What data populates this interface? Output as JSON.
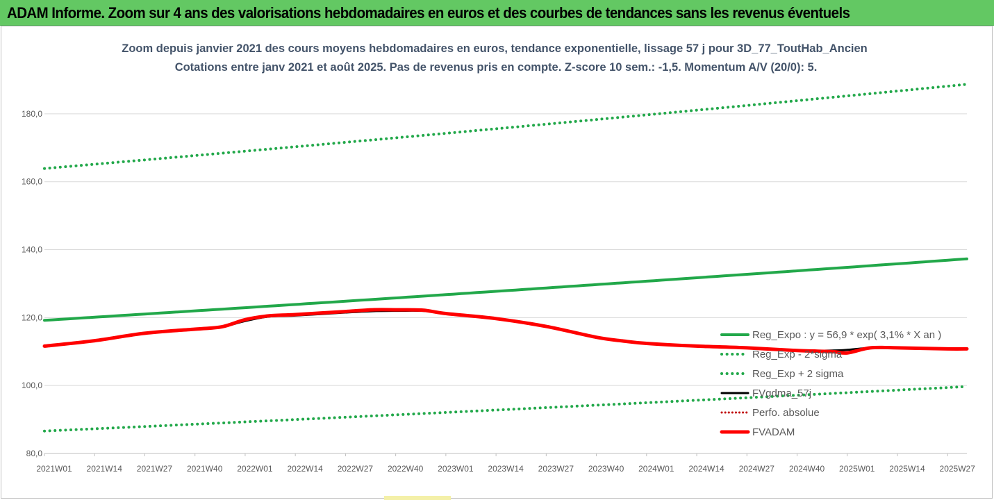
{
  "banner": {
    "title": "ADAM Informe. Zoom sur 4 ans des valorisations hebdomadaires en euros et des courbes de tendances sans les revenus éventuels"
  },
  "colors": {
    "banner_bg": "#63c863",
    "reg_expo": "#22a84a",
    "fvgdma": "#000000",
    "perfo": "#c00000",
    "fvadam": "#ff0000",
    "grid": "#d9d9d9",
    "title": "#44546a"
  },
  "chart_data": {
    "type": "line",
    "title": "Zoom depuis janvier 2021 des cours moyens hebdomadaires en euros, tendance exponentielle, lissage 57 j pour 3D_77_ToutHab_Ancien",
    "subtitle": "Cotations entre janv 2021 et août 2025. Pas de revenus pris en compte. Z-score 10 sem.: -1,5. Momentum A/V (20/0): 5.",
    "xlabel": "",
    "ylabel": "",
    "x_range": [
      "2021W01",
      "2025W32"
    ],
    "x_tick_labels": [
      "2021W01",
      "2021W14",
      "2021W27",
      "2021W40",
      "2022W01",
      "2022W14",
      "2022W27",
      "2022W40",
      "2023W01",
      "2023W14",
      "2023W27",
      "2023W40",
      "2024W01",
      "2024W14",
      "2024W27",
      "2024W40",
      "2025W01",
      "2025W14",
      "2025W27"
    ],
    "y_ticks": [
      "80,0",
      "100,0",
      "120,0",
      "140,0",
      "160,0",
      "180,0"
    ],
    "ylim": [
      80,
      190
    ],
    "grid": "horizontal",
    "legend_position": "right",
    "series": [
      {
        "name": "Reg_Expo : y = 56,9 * exp( 3,1% * X an )",
        "style": "solid-thick",
        "x": [
          "2021W01",
          "2025W32"
        ],
        "y": [
          119.2,
          137.3
        ]
      },
      {
        "name": "Reg_Exp - 2*sigma",
        "style": "dotted",
        "x": [
          "2021W01",
          "2025W32"
        ],
        "y": [
          86.6,
          99.7
        ]
      },
      {
        "name": "Reg_Exp + 2 sigma",
        "style": "dotted",
        "x": [
          "2021W01",
          "2025W32"
        ],
        "y": [
          163.9,
          188.7
        ]
      },
      {
        "name": "FVgdma_57j",
        "style": "solid",
        "x": [
          "2021W01",
          "2021W14",
          "2021W27",
          "2021W40",
          "2021W47",
          "2022W01",
          "2022W07",
          "2022W14",
          "2022W27",
          "2022W34",
          "2022W40",
          "2022W47",
          "2023W01",
          "2023W14",
          "2023W27",
          "2023W40",
          "2023W47",
          "2024W01",
          "2024W14",
          "2024W27",
          "2024W40",
          "2024W49",
          "2025W01",
          "2025W07",
          "2025W14",
          "2025W27",
          "2025W32"
        ],
        "y": [
          111.6,
          113.2,
          115.4,
          116.6,
          117.3,
          119.0,
          120.3,
          120.6,
          121.5,
          121.9,
          122.0,
          122.0,
          121.3,
          119.7,
          117.4,
          114.2,
          113.1,
          112.4,
          111.6,
          111.1,
          110.3,
          110.3,
          110.5,
          111.1,
          111.1,
          110.8,
          110.8
        ]
      },
      {
        "name": "Perfo. absolue",
        "style": "dotted",
        "x": [],
        "y": []
      },
      {
        "name": "FVADAM",
        "style": "solid-thick",
        "x": [
          "2021W01",
          "2021W14",
          "2021W27",
          "2021W40",
          "2021W47",
          "2022W01",
          "2022W07",
          "2022W14",
          "2022W27",
          "2022W34",
          "2022W40",
          "2022W47",
          "2023W01",
          "2023W14",
          "2023W27",
          "2023W40",
          "2023W47",
          "2024W01",
          "2024W14",
          "2024W27",
          "2024W40",
          "2024W49",
          "2025W01",
          "2025W07",
          "2025W14",
          "2025W27",
          "2025W32"
        ],
        "y": [
          111.6,
          113.2,
          115.4,
          116.6,
          117.3,
          119.4,
          120.5,
          120.9,
          121.8,
          122.3,
          122.3,
          122.2,
          121.2,
          119.7,
          117.4,
          114.2,
          113.1,
          112.4,
          111.6,
          111.1,
          110.3,
          110.0,
          109.6,
          111.1,
          111.1,
          110.8,
          110.8
        ]
      }
    ]
  }
}
